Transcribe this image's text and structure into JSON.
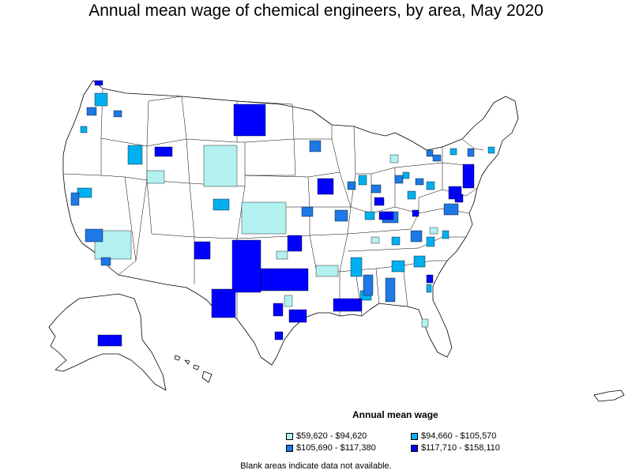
{
  "title": "Annual mean wage of chemical engineers, by area, May 2020",
  "legend": {
    "title": "Annual mean wage",
    "items": [
      {
        "label": "$59,620 - $94,620",
        "color": "#b3f0f0"
      },
      {
        "label": "$94,660 - $105,570",
        "color": "#00b0f0"
      },
      {
        "label": "$105,690 - $117,380",
        "color": "#1e78e6"
      },
      {
        "label": "$117,710 - $158,110",
        "color": "#0000ff"
      }
    ]
  },
  "footnote": "Blank areas indicate data not available."
}
